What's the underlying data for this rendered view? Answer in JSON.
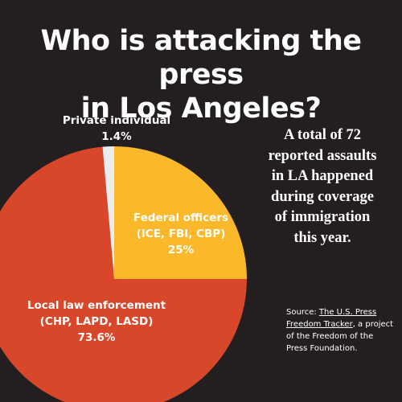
{
  "colors": {
    "background": "#231f20",
    "local": "#d9472b",
    "federal": "#fbb82a",
    "private": "#ececec",
    "text": "#ffffff"
  },
  "chart_data": {
    "type": "pie",
    "title": "Who is attacking the press in Los Angeles?",
    "title_lines": [
      "Who is attacking the press",
      "in Los Angeles?"
    ],
    "slices": [
      {
        "label": "Local law enforcement (CHP, LAPD, LASD)",
        "label_lines": [
          "Local law enforcement",
          "(CHP, LAPD, LASD)"
        ],
        "value": 73.6,
        "value_text": "73.6%",
        "color": "#d9472b"
      },
      {
        "label": "Federal officers (ICE, FBI, CBP)",
        "label_lines": [
          "Federal officers",
          "(ICE, FBI, CBP)"
        ],
        "value": 25,
        "value_text": "25%",
        "color": "#fbb82a"
      },
      {
        "label": "Private individual",
        "label_lines": [
          "Private individual"
        ],
        "value": 1.4,
        "value_text": "1.4%",
        "color": "#ececec"
      }
    ]
  },
  "summary_lines": [
    "A total of 72",
    "reported assaults",
    "in LA happened",
    "during coverage",
    "of immigration",
    "this year."
  ],
  "source": {
    "prefix": "Source: ",
    "link_text": "The U.S. Press Freedom Tracker",
    "suffix": ", a project of the Freedom of the Press Foundation."
  }
}
